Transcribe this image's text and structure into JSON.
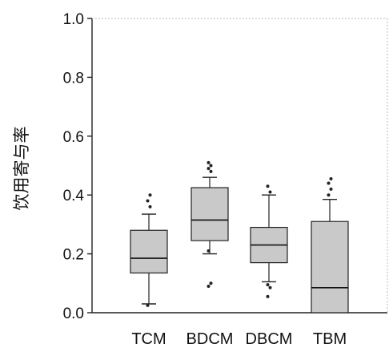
{
  "chart_data": {
    "type": "box",
    "title": "",
    "xlabel": "",
    "ylabel": "饮用寄与率",
    "ylim": [
      0.0,
      1.0
    ],
    "yticks": [
      0.0,
      0.2,
      0.4,
      0.6,
      0.8,
      1.0
    ],
    "ytick_labels": [
      "0.0",
      "0.2",
      "0.4",
      "0.6",
      "0.8",
      "1.0"
    ],
    "categories": [
      "TCM",
      "BDCM",
      "DBCM",
      "TBM"
    ],
    "box_fill": "#c9c9c9",
    "grid": false,
    "boxes": [
      {
        "name": "TCM",
        "whisker_low": 0.03,
        "q1": 0.135,
        "median": 0.185,
        "q3": 0.28,
        "whisker_high": 0.335,
        "outliers": [
          0.025,
          0.36,
          0.38,
          0.4
        ]
      },
      {
        "name": "BDCM",
        "whisker_low": 0.2,
        "q1": 0.245,
        "median": 0.315,
        "q3": 0.425,
        "whisker_high": 0.46,
        "outliers": [
          0.09,
          0.1,
          0.21,
          0.48,
          0.49,
          0.5,
          0.51
        ]
      },
      {
        "name": "DBCM",
        "whisker_low": 0.105,
        "q1": 0.17,
        "median": 0.23,
        "q3": 0.29,
        "whisker_high": 0.4,
        "outliers": [
          0.055,
          0.085,
          0.095,
          0.41,
          0.43
        ]
      },
      {
        "name": "TBM",
        "whisker_low": 0.0,
        "q1": 0.0,
        "median": 0.085,
        "q3": 0.31,
        "whisker_high": 0.385,
        "outliers": [
          0.4,
          0.42,
          0.44,
          0.455
        ]
      }
    ]
  }
}
